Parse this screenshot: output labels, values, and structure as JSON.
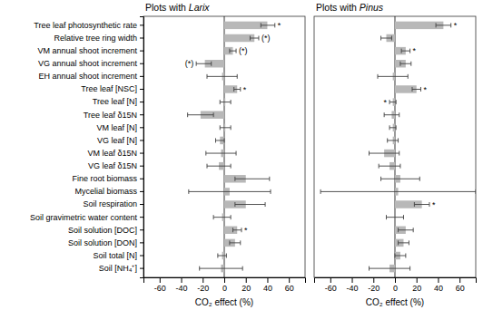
{
  "chart_data": [
    {
      "type": "bar",
      "orientation": "horizontal",
      "title": "Plots with Larix",
      "xlabel": "CO₂ effect (%)",
      "categories": [
        "Tree leaf photosynthetic rate",
        "Relative tree ring width",
        "VM annual shoot increment",
        "VG annual shoot increment",
        "EH annual shoot increment",
        "Tree leaf [NSC]",
        "Tree leaf [N]",
        "Tree leaf δ15N",
        "VM leaf [N]",
        "VG leaf [N]",
        "VM leaf δ15N",
        "VG leaf δ15N",
        "Fine root biomass",
        "Mycelial biomass",
        "Soil respiration",
        "Soil gravimetric water content",
        "Soil solution [DOC]",
        "Soil solution [DON]",
        "Soil total [N]",
        "Soil [NH₄⁺]"
      ],
      "values": [
        40,
        28,
        8,
        -18,
        -2,
        12,
        1,
        -22,
        1,
        -4,
        -3,
        -5,
        20,
        5,
        20,
        -2,
        12,
        10,
        -2,
        -3
      ],
      "error_low": [
        6,
        4,
        3,
        8,
        14,
        3,
        5,
        12,
        5,
        4,
        14,
        11,
        10,
        38,
        10,
        8,
        4,
        5,
        4,
        20
      ],
      "error_high": [
        7,
        4,
        3,
        6,
        14,
        3,
        5,
        12,
        5,
        4,
        14,
        11,
        22,
        38,
        18,
        8,
        4,
        5,
        4,
        20
      ],
      "significance": [
        "*",
        "(*)",
        "(*)",
        "(*)",
        null,
        "*",
        null,
        null,
        null,
        null,
        null,
        null,
        null,
        null,
        null,
        null,
        "*",
        null,
        null,
        null
      ],
      "color": "#b8b8b8",
      "xlim": [
        -75,
        75
      ],
      "xticks": [
        -60,
        -40,
        -20,
        0,
        20,
        40,
        60
      ]
    },
    {
      "type": "bar",
      "orientation": "horizontal",
      "title": "Plots with Pinus",
      "xlabel": "CO₂ effect (%)",
      "categories": [
        "Tree leaf photosynthetic rate",
        "Relative tree ring width",
        "VM annual shoot increment",
        "VG annual shoot increment",
        "EH annual shoot increment",
        "Tree leaf [NSC]",
        "Tree leaf [N]",
        "Tree leaf δ15N",
        "VM leaf [N]",
        "VG leaf [N]",
        "VM leaf δ15N",
        "VG leaf δ15N",
        "Fine root biomass",
        "Mycelial biomass",
        "Soil respiration",
        "Soil gravimetric water content",
        "Soil solution [DOC]",
        "Soil solution [DON]",
        "Soil total [N]",
        "Soil [NH₄⁺]"
      ],
      "values": [
        45,
        -8,
        10,
        10,
        -2,
        20,
        -2,
        -3,
        -2,
        -2,
        -10,
        -5,
        5,
        3,
        25,
        0,
        10,
        8,
        5,
        -5
      ],
      "error_low": [
        7,
        5,
        4,
        5,
        14,
        4,
        3,
        7,
        3,
        5,
        14,
        10,
        18,
        72,
        7,
        8,
        7,
        5,
        5,
        19
      ],
      "error_high": [
        7,
        5,
        4,
        5,
        14,
        4,
        3,
        7,
        3,
        5,
        14,
        10,
        18,
        72,
        7,
        8,
        7,
        5,
        5,
        19
      ],
      "significance": [
        "*",
        null,
        "*",
        null,
        null,
        "*",
        "*",
        null,
        null,
        null,
        null,
        null,
        null,
        null,
        "*",
        null,
        null,
        null,
        null,
        null
      ],
      "color": "#b8b8b8",
      "tick_labels": "x",
      "xlim": [
        -75,
        75
      ],
      "xticks": [
        -60,
        -40,
        -20,
        0,
        20,
        40,
        60
      ]
    }
  ]
}
